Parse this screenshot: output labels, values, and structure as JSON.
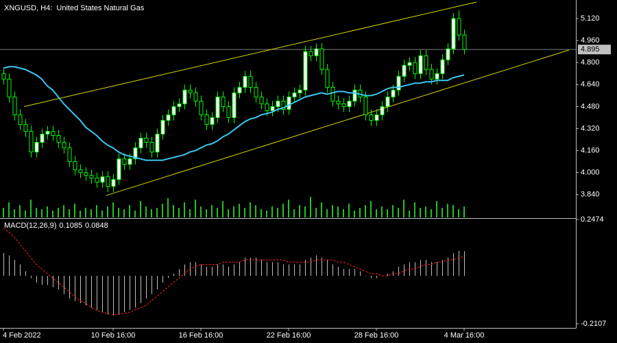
{
  "chart_data": {
    "type": "candlestick",
    "title": "XNGUSD, H4:  United States Natural Gas",
    "categories": [
      "4 Feb 2022",
      null,
      null,
      null,
      null,
      null,
      null,
      null,
      null,
      null,
      null,
      null,
      null,
      null,
      null,
      null,
      null,
      null,
      null,
      null,
      "10 Feb 16:00",
      null,
      null,
      null,
      null,
      null,
      null,
      null,
      null,
      null,
      null,
      null,
      null,
      null,
      null,
      null,
      "16 Feb 16:00",
      null,
      null,
      null,
      null,
      null,
      null,
      null,
      null,
      null,
      null,
      null,
      null,
      null,
      null,
      null,
      "22 Feb 16:00",
      null,
      null,
      null,
      null,
      null,
      null,
      null,
      null,
      null,
      null,
      null,
      null,
      null,
      null,
      null,
      "28 Feb 16:00",
      null,
      null,
      null,
      null,
      null,
      null,
      null,
      null,
      null,
      null,
      null,
      null,
      null,
      null,
      null,
      "4 Mar 16:00"
    ],
    "open": [
      4.72,
      4.68,
      4.55,
      4.42,
      4.35,
      4.3,
      4.15,
      4.22,
      4.28,
      4.3,
      4.27,
      4.22,
      4.18,
      4.08,
      4.02,
      4.0,
      3.98,
      3.96,
      3.93,
      3.97,
      3.9,
      3.95,
      4.1,
      4.06,
      4.1,
      4.18,
      4.25,
      4.22,
      4.15,
      4.28,
      4.38,
      4.42,
      4.48,
      4.5,
      4.6,
      4.58,
      4.52,
      4.42,
      4.35,
      4.4,
      4.55,
      4.48,
      4.4,
      4.58,
      4.62,
      4.7,
      4.62,
      4.55,
      4.5,
      4.45,
      4.48,
      4.52,
      4.46,
      4.55,
      4.58,
      4.6,
      4.88,
      4.85,
      4.9,
      4.75,
      4.62,
      4.52,
      4.5,
      4.48,
      4.52,
      4.6,
      4.55,
      4.42,
      4.38,
      4.42,
      4.48,
      4.55,
      4.6,
      4.7,
      4.78,
      4.8,
      4.72,
      4.85,
      4.75,
      4.68,
      4.72,
      4.82,
      4.9,
      5.12,
      5.0
    ],
    "high": [
      4.76,
      4.72,
      4.59,
      4.46,
      4.39,
      4.34,
      4.26,
      4.32,
      4.34,
      4.34,
      4.31,
      4.26,
      4.22,
      4.12,
      4.06,
      4.04,
      4.02,
      4.0,
      4.01,
      4.01,
      3.99,
      4.14,
      4.14,
      4.14,
      4.22,
      4.29,
      4.29,
      4.26,
      4.32,
      4.42,
      4.46,
      4.52,
      4.54,
      4.64,
      4.64,
      4.62,
      4.56,
      4.46,
      4.44,
      4.59,
      4.59,
      4.52,
      4.62,
      4.66,
      4.74,
      4.74,
      4.66,
      4.59,
      4.54,
      4.52,
      4.56,
      4.56,
      4.59,
      4.62,
      4.64,
      4.92,
      4.92,
      4.94,
      4.94,
      4.79,
      4.66,
      4.56,
      4.54,
      4.56,
      4.64,
      4.64,
      4.59,
      4.46,
      4.46,
      4.52,
      4.59,
      4.64,
      4.74,
      4.82,
      4.84,
      4.84,
      4.89,
      4.89,
      4.79,
      4.76,
      4.86,
      4.94,
      5.16,
      5.18,
      5.04
    ],
    "low": [
      4.64,
      4.51,
      4.38,
      4.31,
      4.26,
      4.11,
      4.11,
      4.18,
      4.24,
      4.23,
      4.18,
      4.14,
      4.04,
      3.98,
      3.96,
      3.94,
      3.92,
      3.89,
      3.89,
      3.86,
      3.86,
      3.91,
      4.02,
      4.02,
      4.06,
      4.14,
      4.18,
      4.11,
      4.11,
      4.24,
      4.34,
      4.38,
      4.44,
      4.46,
      4.54,
      4.48,
      4.38,
      4.31,
      4.31,
      4.36,
      4.44,
      4.36,
      4.36,
      4.54,
      4.58,
      4.58,
      4.51,
      4.46,
      4.41,
      4.41,
      4.44,
      4.42,
      4.42,
      4.51,
      4.54,
      4.56,
      4.81,
      4.81,
      4.71,
      4.58,
      4.48,
      4.46,
      4.44,
      4.44,
      4.48,
      4.51,
      4.38,
      4.34,
      4.34,
      4.38,
      4.44,
      4.51,
      4.56,
      4.66,
      4.74,
      4.68,
      4.68,
      4.71,
      4.64,
      4.64,
      4.68,
      4.78,
      4.86,
      4.96,
      4.86
    ],
    "close": [
      4.68,
      4.55,
      4.42,
      4.35,
      4.3,
      4.15,
      4.22,
      4.28,
      4.3,
      4.27,
      4.22,
      4.18,
      4.08,
      4.02,
      4.0,
      3.98,
      3.96,
      3.93,
      3.97,
      3.9,
      3.95,
      4.1,
      4.06,
      4.1,
      4.18,
      4.25,
      4.22,
      4.15,
      4.28,
      4.38,
      4.42,
      4.48,
      4.5,
      4.6,
      4.58,
      4.52,
      4.42,
      4.35,
      4.4,
      4.55,
      4.48,
      4.4,
      4.58,
      4.62,
      4.7,
      4.62,
      4.55,
      4.5,
      4.45,
      4.48,
      4.52,
      4.46,
      4.55,
      4.58,
      4.6,
      4.88,
      4.85,
      4.9,
      4.75,
      4.62,
      4.52,
      4.5,
      4.48,
      4.52,
      4.6,
      4.55,
      4.42,
      4.38,
      4.42,
      4.48,
      4.55,
      4.6,
      4.7,
      4.78,
      4.8,
      4.72,
      4.85,
      4.75,
      4.68,
      4.72,
      4.82,
      4.9,
      5.12,
      5.0,
      4.895
    ],
    "ylim": [
      3.674,
      5.255
    ],
    "yticks": [
      {
        "value": 5.12,
        "label": "5.120"
      },
      {
        "value": 4.96,
        "label": "4.960"
      },
      {
        "value": 4.8,
        "label": "4.800"
      },
      {
        "value": 4.64,
        "label": "4.640"
      },
      {
        "value": 4.48,
        "label": "4.480"
      },
      {
        "value": 4.32,
        "label": "4.320"
      },
      {
        "value": 4.16,
        "label": "4.160"
      },
      {
        "value": 4.0,
        "label": "4.000"
      },
      {
        "value": 3.84,
        "label": "3.840"
      }
    ],
    "last_price": 4.895,
    "colors": {
      "candle": "#00ff00",
      "up_fill": "#ffffff",
      "down_fill": "#000000",
      "price_line": "#808080"
    },
    "moving_average": {
      "color": "#3cc8f0",
      "values": [
        4.76,
        4.77,
        4.77,
        4.76,
        4.75,
        4.73,
        4.71,
        4.68,
        4.63,
        4.6,
        4.55,
        4.5,
        4.46,
        4.42,
        4.38,
        4.33,
        4.3,
        4.27,
        4.23,
        4.2,
        4.18,
        4.15,
        4.13,
        4.12,
        4.11,
        4.1,
        4.09,
        4.09,
        4.09,
        4.09,
        4.1,
        4.11,
        4.12,
        4.13,
        4.15,
        4.16,
        4.18,
        4.2,
        4.21,
        4.23,
        4.26,
        4.28,
        4.31,
        4.34,
        4.37,
        4.39,
        4.4,
        4.42,
        4.43,
        4.44,
        4.46,
        4.47,
        4.49,
        4.51,
        4.53,
        4.55,
        4.56,
        4.57,
        4.58,
        4.57,
        4.58,
        4.59,
        4.59,
        4.58,
        4.58,
        4.57,
        4.56,
        4.56,
        4.57,
        4.59,
        4.61,
        4.62,
        4.62,
        4.63,
        4.64,
        4.65,
        4.65,
        4.66,
        4.66,
        4.67,
        4.67,
        4.67,
        4.69,
        4.7,
        4.71
      ]
    },
    "volume": {
      "color": "#22c422",
      "values": [
        14,
        22,
        12,
        18,
        10,
        26,
        14,
        12,
        16,
        10,
        14,
        18,
        12,
        20,
        10,
        14,
        12,
        18,
        10,
        16,
        22,
        14,
        12,
        18,
        10,
        24,
        16,
        12,
        14,
        20,
        28,
        18,
        14,
        22,
        12,
        26,
        16,
        12,
        18,
        14,
        24,
        12,
        16,
        20,
        14,
        22,
        18,
        12,
        10,
        16,
        14,
        20,
        26,
        12,
        18,
        16,
        30,
        14,
        22,
        12,
        18,
        16,
        12,
        20,
        10,
        14,
        18,
        24,
        12,
        16,
        12,
        18,
        14,
        26,
        10,
        22,
        14,
        16,
        12,
        24,
        14,
        20,
        18,
        12,
        16
      ]
    },
    "trendlines": [
      {
        "color": "#d8d800",
        "x": [
          3.75,
          86.25
        ],
        "y": [
          4.48,
          5.24
        ]
      },
      {
        "color": "#d8d800",
        "x": [
          18.75,
          103.1
        ],
        "y": [
          3.834,
          4.891
        ]
      }
    ],
    "macd": {
      "type": "bar",
      "title": "MACD(12,26,9)",
      "ylim": [
        -0.2107,
        0.2474
      ],
      "yticks": [
        0.2474,
        -0.2107
      ],
      "histogram": {
        "color": "#c0c0c0",
        "values": [
          0.1,
          0.09,
          0.07,
          0.05,
          0.02,
          -0.01,
          -0.03,
          -0.04,
          -0.04,
          -0.05,
          -0.06,
          -0.08,
          -0.1,
          -0.11,
          -0.12,
          -0.13,
          -0.14,
          -0.15,
          -0.16,
          -0.17,
          -0.175,
          -0.17,
          -0.16,
          -0.15,
          -0.14,
          -0.12,
          -0.1,
          -0.08,
          -0.06,
          -0.03,
          -0.01,
          0.01,
          0.03,
          0.05,
          0.06,
          0.06,
          0.05,
          0.04,
          0.04,
          0.05,
          0.05,
          0.04,
          0.05,
          0.06,
          0.08,
          0.08,
          0.08,
          0.07,
          0.06,
          0.06,
          0.06,
          0.05,
          0.05,
          0.05,
          0.05,
          0.07,
          0.08,
          0.09,
          0.08,
          0.07,
          0.05,
          0.04,
          0.03,
          0.03,
          0.03,
          0.02,
          0.0,
          -0.01,
          -0.01,
          0.0,
          0.01,
          0.02,
          0.04,
          0.05,
          0.06,
          0.06,
          0.07,
          0.07,
          0.06,
          0.06,
          0.07,
          0.08,
          0.1,
          0.11,
          0.1085
        ]
      },
      "signal": {
        "color": "#ff2020",
        "values": [
          0.21,
          0.19,
          0.17,
          0.14,
          0.11,
          0.08,
          0.05,
          0.03,
          0.01,
          -0.01,
          -0.03,
          -0.05,
          -0.07,
          -0.09,
          -0.11,
          -0.12,
          -0.14,
          -0.15,
          -0.16,
          -0.165,
          -0.17,
          -0.17,
          -0.165,
          -0.16,
          -0.15,
          -0.14,
          -0.13,
          -0.11,
          -0.09,
          -0.07,
          -0.05,
          -0.03,
          -0.01,
          0.01,
          0.03,
          0.04,
          0.05,
          0.05,
          0.05,
          0.05,
          0.06,
          0.06,
          0.06,
          0.06,
          0.07,
          0.07,
          0.07,
          0.07,
          0.07,
          0.07,
          0.07,
          0.07,
          0.06,
          0.06,
          0.06,
          0.06,
          0.06,
          0.07,
          0.07,
          0.07,
          0.07,
          0.06,
          0.06,
          0.05,
          0.04,
          0.03,
          0.02,
          0.01,
          0.01,
          0.0,
          0.0,
          0.01,
          0.01,
          0.02,
          0.03,
          0.03,
          0.04,
          0.05,
          0.05,
          0.06,
          0.06,
          0.07,
          0.07,
          0.08,
          0.0848
        ]
      }
    }
  }
}
